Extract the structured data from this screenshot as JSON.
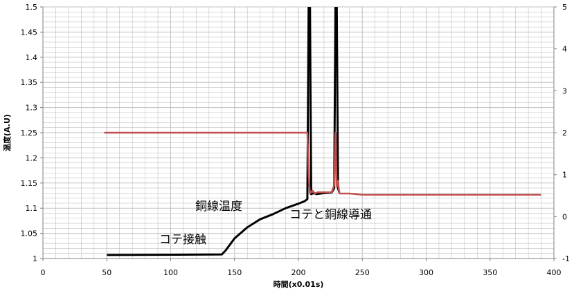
{
  "chart_data": {
    "type": "line",
    "xlabel": "時間(x0.01s)",
    "ylabel": "温度(A.U)",
    "xlim": [
      0,
      400
    ],
    "x_ticks": [
      0,
      50,
      100,
      150,
      200,
      250,
      300,
      350,
      400
    ],
    "ylim": [
      1.0,
      1.5
    ],
    "y_ticks": [
      "1",
      "1.05",
      "1.1",
      "1.15",
      "1.2",
      "1.25",
      "1.3",
      "1.35",
      "1.4",
      "1.45",
      "1.5"
    ],
    "y2lim": [
      -1,
      5
    ],
    "y2_ticks": [
      "-1",
      "0",
      "1",
      "2",
      "3",
      "4",
      "5"
    ],
    "grid": true,
    "series": [
      {
        "color": "#000000",
        "axis": "left",
        "x": [
          50,
          140,
          143,
          150,
          160,
          170,
          180,
          190,
          200,
          205,
          207,
          208,
          209,
          210,
          212,
          214,
          220,
          226,
          228,
          229,
          230,
          231,
          232
        ],
        "y": [
          1.007,
          1.008,
          1.016,
          1.04,
          1.062,
          1.078,
          1.088,
          1.1,
          1.109,
          1.114,
          1.118,
          1.5,
          1.5,
          1.128,
          1.13,
          1.128,
          1.13,
          1.131,
          1.14,
          1.5,
          1.5,
          1.14,
          1.131
        ]
      },
      {
        "color": "#c0504d",
        "axis": "right",
        "x": [
          48,
          207,
          208,
          209,
          211,
          213,
          215,
          220,
          226,
          228,
          229,
          230,
          231,
          232,
          234,
          240,
          250,
          300,
          350,
          390
        ],
        "y": [
          2.0,
          2.0,
          1.0,
          0.55,
          0.62,
          0.55,
          0.58,
          0.58,
          0.58,
          0.75,
          2.0,
          0.72,
          0.85,
          0.55,
          0.55,
          0.55,
          0.52,
          0.52,
          0.52,
          0.52
        ]
      }
    ],
    "annotations": [
      "銅線温度",
      "コテ接触",
      "コテと銅線導通"
    ]
  },
  "colors": {
    "grid": "#c0c0c0",
    "plot_border": "#808080",
    "temperature_line": "#000000",
    "conduction_line": "#c0504d"
  }
}
